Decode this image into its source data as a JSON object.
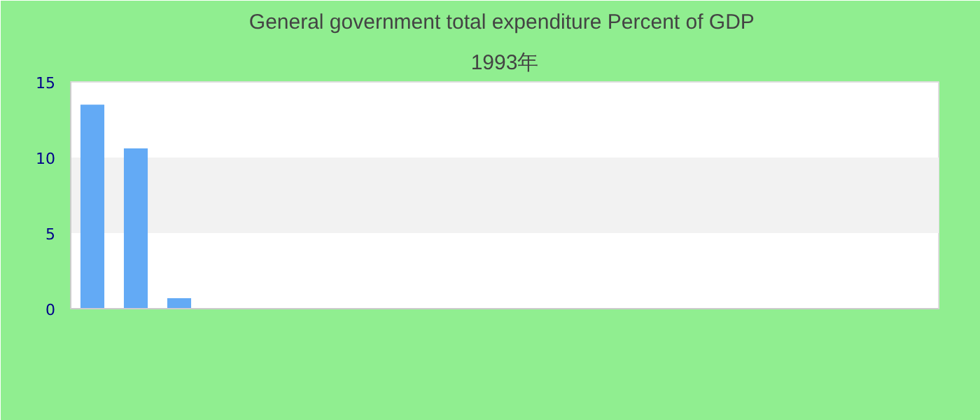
{
  "chart_data": {
    "type": "bar",
    "title": "General government total expenditure  Percent of GDP",
    "subtitle": "1993年",
    "categories": [
      null,
      null,
      null,
      null,
      null,
      null,
      null,
      null,
      null,
      null,
      null,
      null,
      null,
      null,
      null,
      null,
      null,
      null,
      null,
      null
    ],
    "values": [
      13.5,
      10.6,
      0.7,
      0,
      0,
      0,
      0,
      0,
      0,
      0,
      0,
      0,
      0,
      0,
      0,
      0,
      0,
      0,
      0,
      0
    ],
    "color": "#63aaf5",
    "ylim": [
      0,
      15
    ],
    "yticks": [
      0,
      5,
      10,
      15
    ],
    "bands": [
      {
        "axis": "y",
        "from": 5,
        "to": 10,
        "color": "#f2f2f2"
      }
    ]
  }
}
